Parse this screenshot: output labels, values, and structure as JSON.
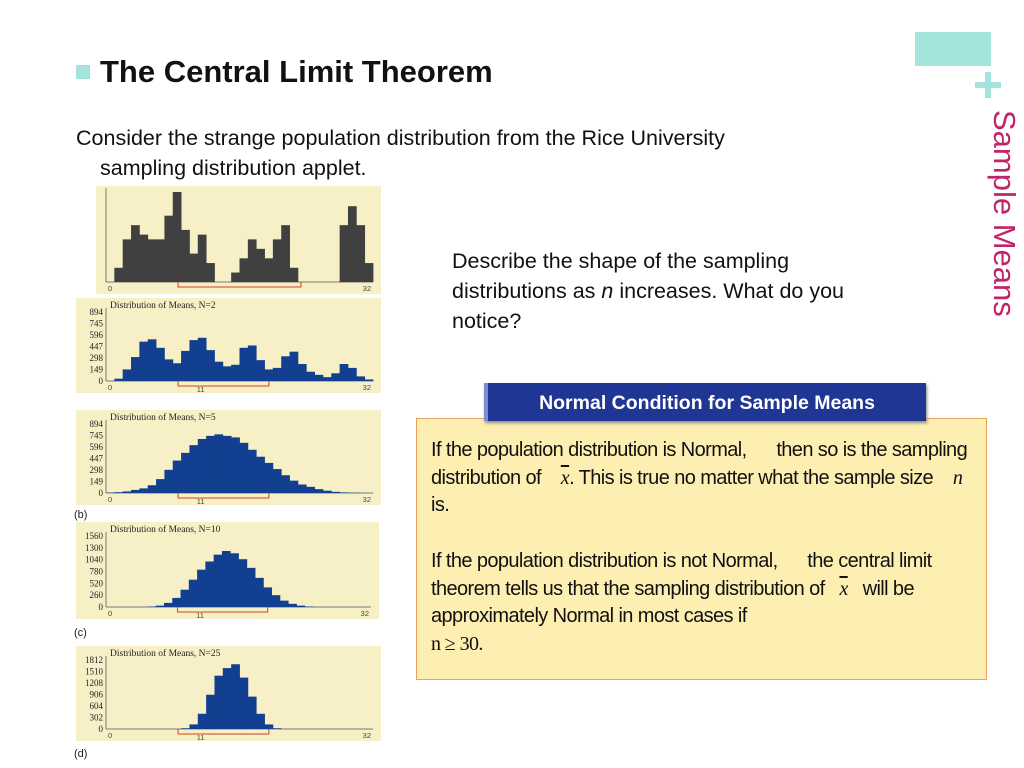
{
  "slide": {
    "side_title": "Sample Means",
    "title": "The Central Limit Theorem",
    "intro_line1": "Consider the strange population distribution from the Rice University",
    "intro_line2": "sampling distribution applet.",
    "question_part1": "Describe the shape of the sampling distributions as ",
    "question_n": "n",
    "question_part2": " increases. What do you notice?"
  },
  "condition": {
    "header": "Normal Condition for Sample Means",
    "p1_a": "If the population distribution is Normal,",
    "p1_b": "then so is the sampling distribution of ",
    "p1_xbar": "x",
    "p1_c": ". This is true no matter what the sample size ",
    "p1_n": "n",
    "p1_d": " is.",
    "p2_a": "If the population distribution is not Normal,",
    "p2_b": "the central limit theorem tells us that the sampling distribution of ",
    "p2_xbar": "x",
    "p2_c": " will be approximately Normal in most cases if",
    "p2_cond": "n ≥ 30."
  },
  "chart_data": [
    {
      "type": "bar",
      "x_range": [
        0,
        32
      ],
      "x_tick_labels": [
        "0",
        "32"
      ],
      "values": [
        0,
        3,
        9,
        12,
        10,
        9,
        9,
        14,
        19,
        11,
        6,
        10,
        4,
        0,
        0,
        2,
        5,
        9,
        7,
        5,
        9,
        12,
        3,
        0,
        0,
        0,
        0,
        0,
        12,
        16,
        12,
        4
      ],
      "color": "#404040"
    },
    {
      "type": "bar",
      "title": "Distribution of Means, N=2",
      "label": "",
      "y_ticks": [
        0,
        149,
        298,
        447,
        596,
        745,
        894
      ],
      "ylim": [
        0,
        894
      ],
      "x_tick_labels": [
        "0",
        "11",
        "32"
      ],
      "values": [
        0,
        30,
        150,
        310,
        510,
        540,
        430,
        280,
        230,
        390,
        530,
        560,
        400,
        250,
        190,
        210,
        430,
        460,
        270,
        150,
        170,
        320,
        380,
        220,
        120,
        80,
        50,
        100,
        220,
        170,
        60,
        20
      ],
      "color": "#123f8f"
    },
    {
      "type": "bar",
      "title": "Distribution of Means, N=5",
      "label": "(b)",
      "y_ticks": [
        0,
        149,
        298,
        447,
        596,
        745,
        894
      ],
      "ylim": [
        0,
        894
      ],
      "x_tick_labels": [
        "0",
        "11",
        "32"
      ],
      "values": [
        5,
        10,
        20,
        40,
        60,
        100,
        180,
        300,
        420,
        520,
        620,
        700,
        740,
        760,
        740,
        720,
        650,
        560,
        470,
        390,
        310,
        230,
        160,
        110,
        80,
        50,
        30,
        15,
        8,
        4,
        2,
        0
      ],
      "color": "#123f8f"
    },
    {
      "type": "bar",
      "title": "Distribution of Means, N=10",
      "label": "(c)",
      "y_ticks": [
        0,
        260,
        520,
        780,
        1040,
        1300,
        1560
      ],
      "ylim": [
        0,
        1560
      ],
      "x_tick_labels": [
        "0",
        "11",
        "32"
      ],
      "values": [
        0,
        0,
        0,
        0,
        0,
        10,
        30,
        90,
        200,
        380,
        600,
        820,
        1000,
        1150,
        1230,
        1180,
        1050,
        860,
        640,
        430,
        260,
        140,
        70,
        30,
        10,
        0,
        0,
        0,
        0,
        0,
        0,
        0
      ],
      "color": "#123f8f"
    },
    {
      "type": "bar",
      "title": "Distribution of Means, N=25",
      "label": "(d)",
      "y_ticks": [
        0,
        302,
        604,
        906,
        1208,
        1510,
        1812
      ],
      "ylim": [
        0,
        1812
      ],
      "x_tick_labels": [
        "0",
        "11",
        "32"
      ],
      "values": [
        0,
        0,
        0,
        0,
        0,
        0,
        0,
        0,
        0,
        20,
        120,
        400,
        900,
        1400,
        1600,
        1700,
        1350,
        850,
        400,
        120,
        20,
        0,
        0,
        0,
        0,
        0,
        0,
        0,
        0,
        0,
        0,
        0
      ],
      "color": "#123f8f"
    }
  ]
}
